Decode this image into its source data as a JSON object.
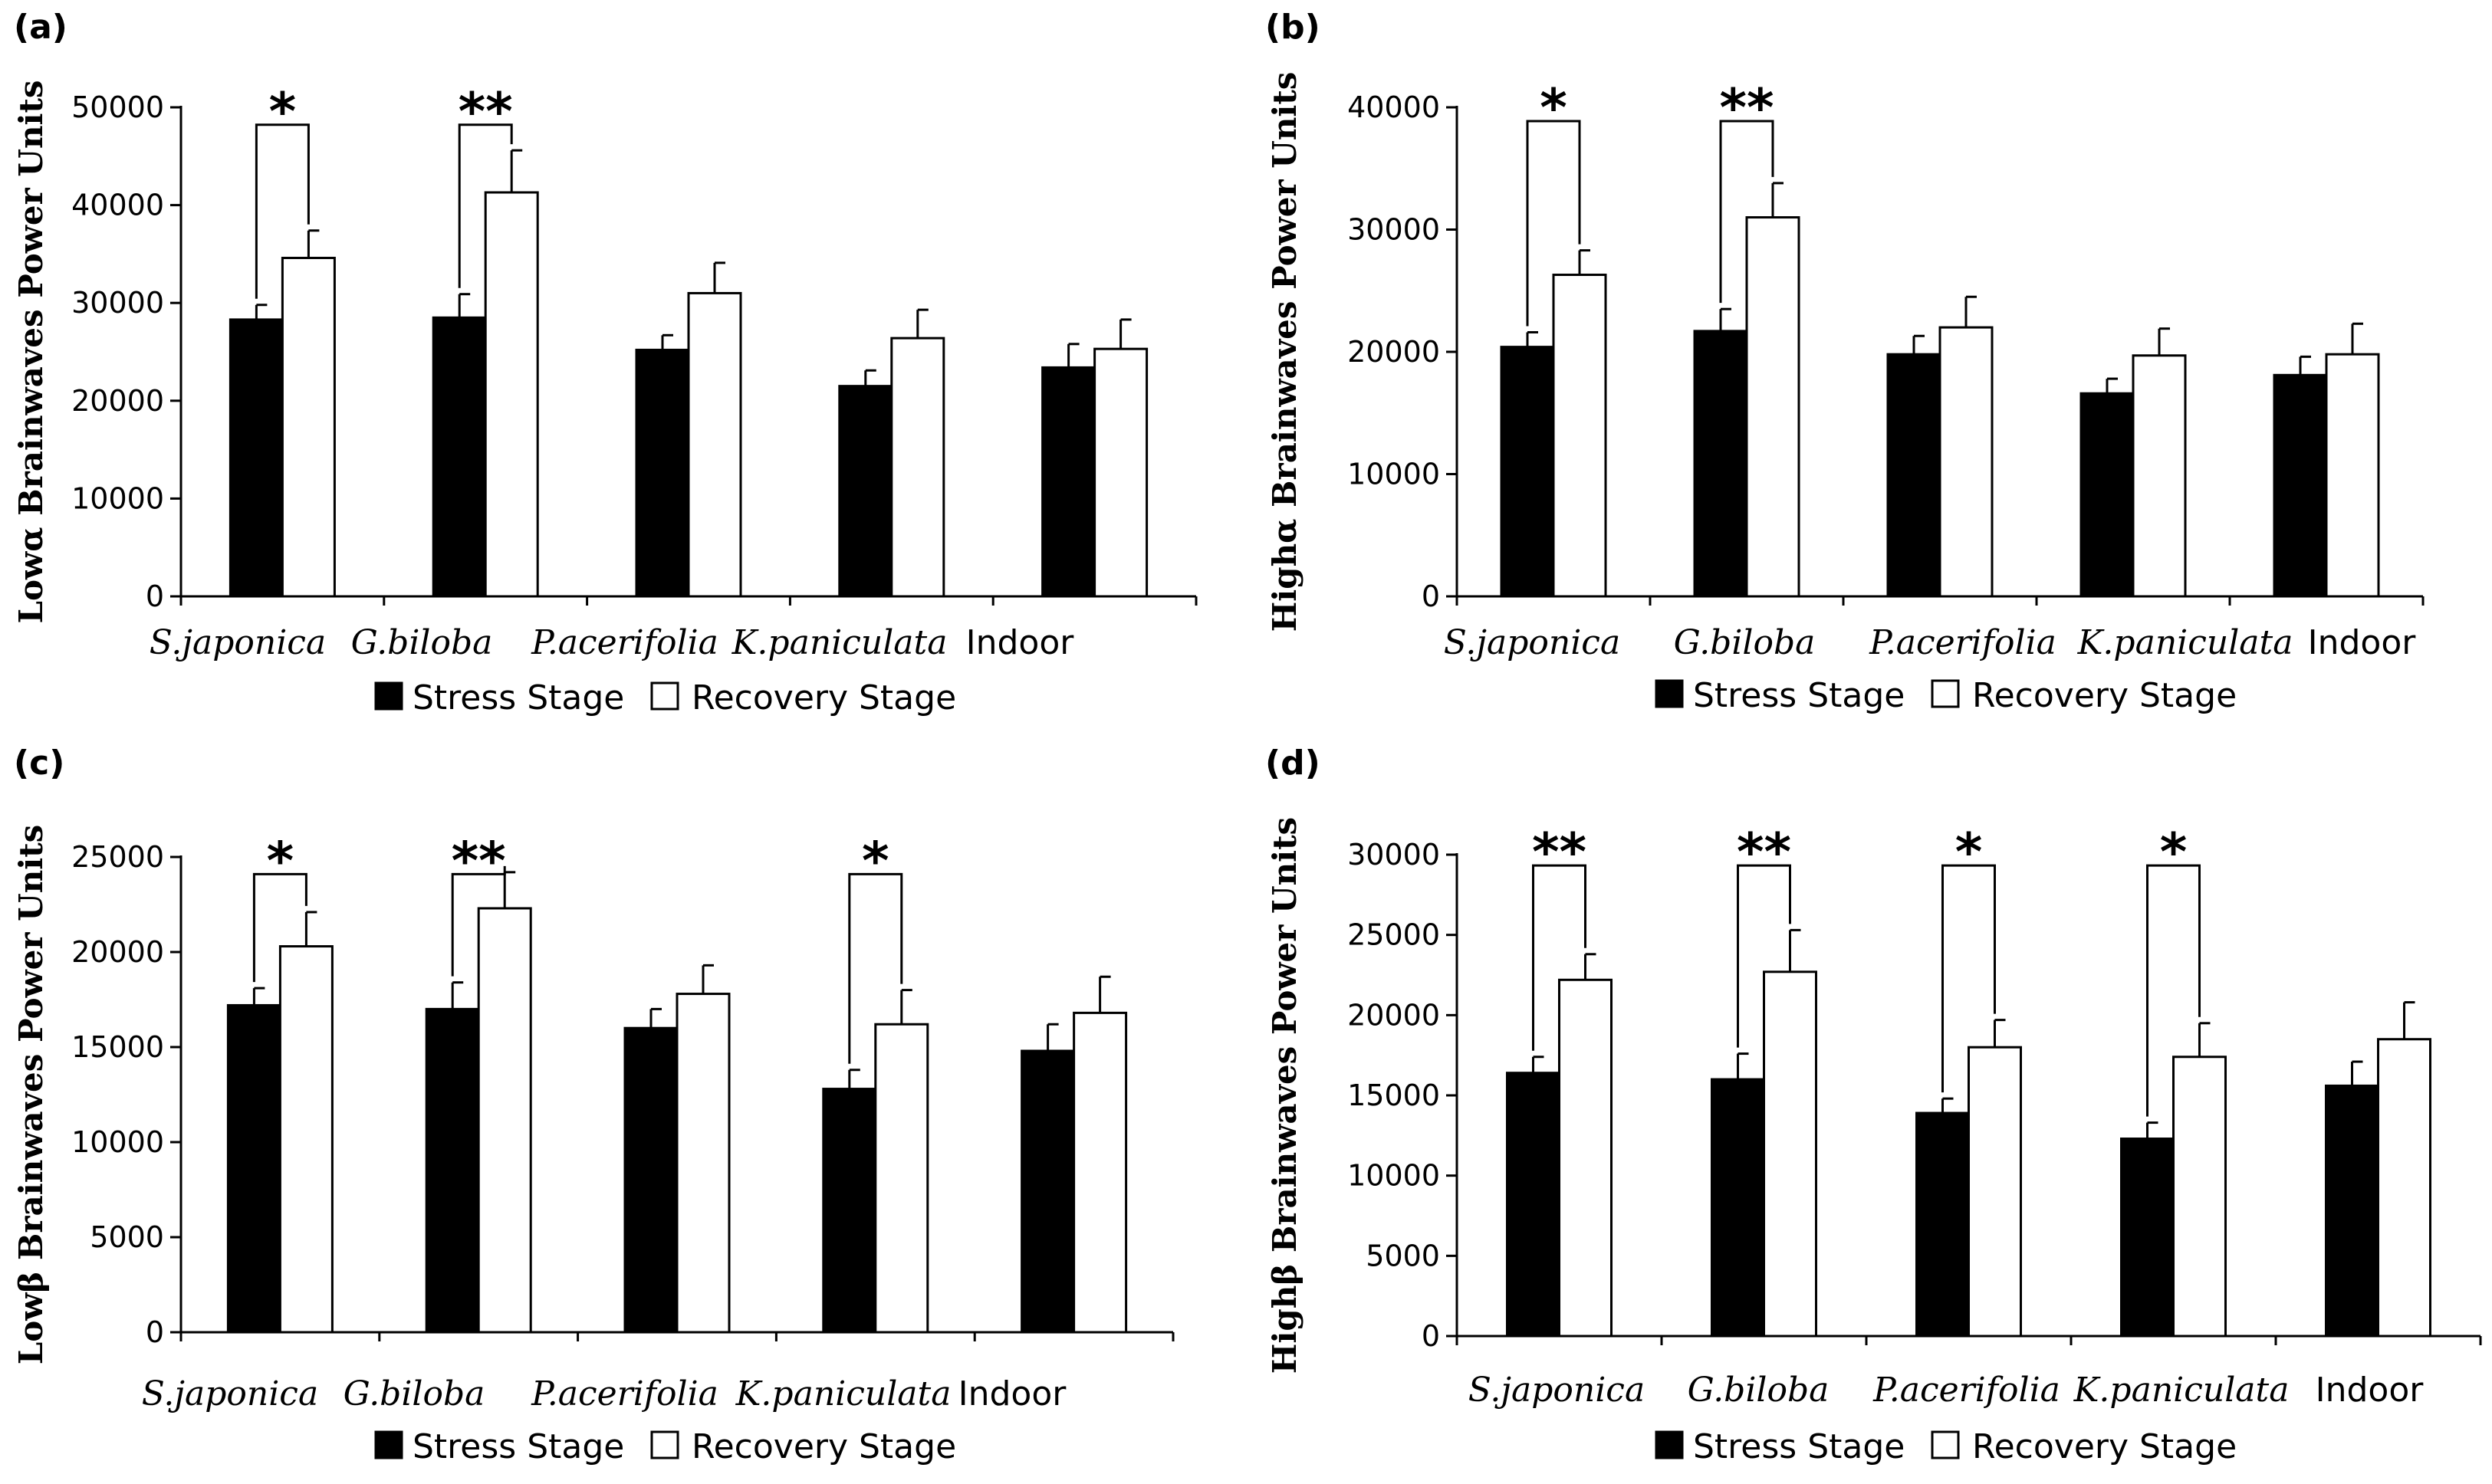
{
  "legend": {
    "stress": "Stress Stage",
    "recovery": "Recovery Stage"
  },
  "colors": {
    "stress": "#000000",
    "recovery": "#ffffff",
    "axis": "#000000"
  },
  "chart_data": [
    {
      "panel": "(a)",
      "type": "bar",
      "ylabel": "Lowα Brainwaves Power Units",
      "ylim": [
        0,
        50000
      ],
      "yticks": [
        "0",
        "10000",
        "20000",
        "30000",
        "40000",
        "50000"
      ],
      "categories": [
        "S.japonica",
        "G.biloba",
        "P.acerifolia",
        "K.paniculata",
        "Indoor"
      ],
      "series": [
        {
          "name": "Stress Stage",
          "values": [
            28300,
            28500,
            25200,
            21500,
            23400
          ],
          "errors": [
            1500,
            2400,
            1500,
            1600,
            2400
          ]
        },
        {
          "name": "Recovery Stage",
          "values": [
            34600,
            41300,
            31000,
            26400,
            25300
          ],
          "errors": [
            2800,
            4300,
            3100,
            2900,
            3000
          ]
        }
      ],
      "significance": [
        {
          "category": 0,
          "label": "*",
          "top": 49000
        },
        {
          "category": 1,
          "label": "**",
          "top": 49000
        }
      ],
      "legend_position": "bottom-center",
      "grid": false
    },
    {
      "panel": "(b)",
      "type": "bar",
      "ylabel": "Highα Brainwaves Power Units",
      "ylim": [
        0,
        40000
      ],
      "yticks": [
        "0",
        "10000",
        "20000",
        "30000",
        "40000"
      ],
      "categories": [
        "S.japonica",
        "G.biloba",
        "P.acerifolia",
        "K.paniculata",
        "Indoor"
      ],
      "series": [
        {
          "name": "Stress Stage",
          "values": [
            20400,
            21700,
            19800,
            16600,
            18100
          ],
          "errors": [
            1200,
            1800,
            1500,
            1200,
            1500
          ]
        },
        {
          "name": "Recovery Stage",
          "values": [
            26300,
            31000,
            22000,
            19700,
            19800
          ],
          "errors": [
            2000,
            2800,
            2500,
            2200,
            2500
          ]
        }
      ],
      "significance": [
        {
          "category": 0,
          "label": "*",
          "top": 39500
        },
        {
          "category": 1,
          "label": "**",
          "top": 39500
        }
      ],
      "legend_position": "bottom-center",
      "grid": false
    },
    {
      "panel": "(c)",
      "type": "bar",
      "ylabel": "Lowβ Brainwaves Power Units",
      "ylim": [
        0,
        25000
      ],
      "yticks": [
        "0",
        "5000",
        "10000",
        "15000",
        "20000",
        "25000"
      ],
      "categories": [
        "S.japonica",
        "G.biloba",
        "P.acerifolia",
        "K.paniculata",
        "Indoor"
      ],
      "series": [
        {
          "name": "Stress Stage",
          "values": [
            17200,
            17000,
            16000,
            12800,
            14800
          ],
          "errors": [
            900,
            1400,
            1000,
            1000,
            1400
          ]
        },
        {
          "name": "Recovery Stage",
          "values": [
            20300,
            22300,
            17800,
            16200,
            16800
          ],
          "errors": [
            1800,
            1900,
            1500,
            1800,
            1900
          ]
        }
      ],
      "significance": [
        {
          "category": 0,
          "label": "*",
          "top": 24500
        },
        {
          "category": 1,
          "label": "**",
          "top": 24500
        },
        {
          "category": 3,
          "label": "*",
          "top": 24500
        }
      ],
      "legend_position": "bottom-center",
      "grid": false
    },
    {
      "panel": "(d)",
      "type": "bar",
      "ylabel": "Highβ Brainwaves Power Units",
      "ylim": [
        0,
        30000
      ],
      "yticks": [
        "0",
        "5000",
        "10000",
        "15000",
        "20000",
        "25000",
        "30000"
      ],
      "categories": [
        "S.japonica",
        "G.biloba",
        "P.acerifolia",
        "K.paniculata",
        "Indoor"
      ],
      "series": [
        {
          "name": "Stress Stage",
          "values": [
            16400,
            16000,
            13900,
            12300,
            15600
          ],
          "errors": [
            1000,
            1600,
            900,
            1000,
            1500
          ]
        },
        {
          "name": "Recovery Stage",
          "values": [
            22200,
            22700,
            18000,
            17400,
            18500
          ],
          "errors": [
            1600,
            2600,
            1700,
            2100,
            2300
          ]
        }
      ],
      "significance": [
        {
          "category": 0,
          "label": "**",
          "top": 29800
        },
        {
          "category": 1,
          "label": "**",
          "top": 29800
        },
        {
          "category": 2,
          "label": "*",
          "top": 29800
        },
        {
          "category": 3,
          "label": "*",
          "top": 29800
        }
      ],
      "legend_position": "bottom-center",
      "grid": false
    }
  ]
}
